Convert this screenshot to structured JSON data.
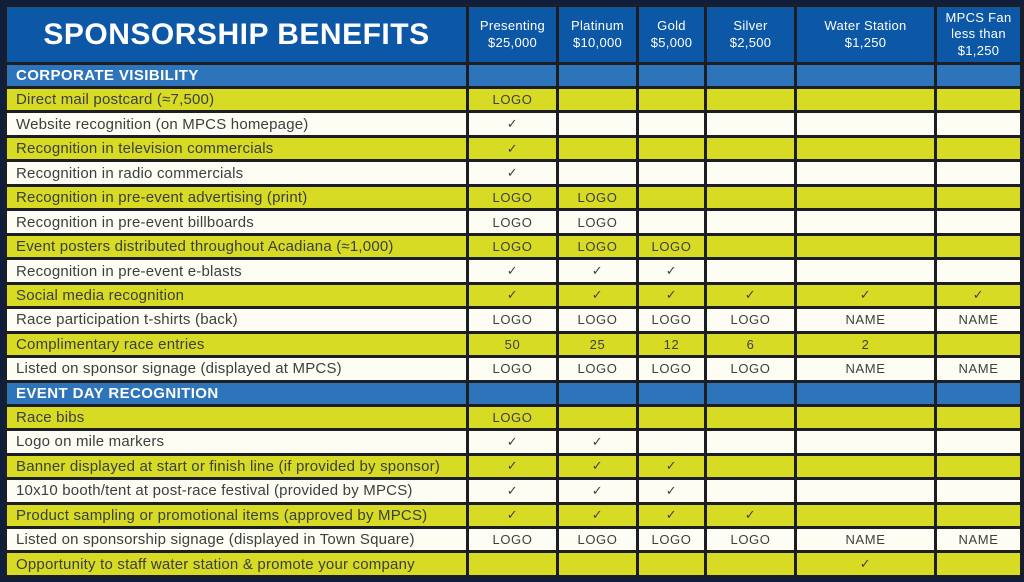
{
  "table": {
    "title": "SPONSORSHIP BENEFITS",
    "columns": [
      {
        "id": "presenting",
        "lines": [
          "Presenting",
          "$25,000"
        ]
      },
      {
        "id": "platinum",
        "lines": [
          "Platinum",
          "$10,000"
        ]
      },
      {
        "id": "gold",
        "lines": [
          "Gold",
          "$5,000"
        ]
      },
      {
        "id": "silver",
        "lines": [
          "Silver",
          "$2,500"
        ]
      },
      {
        "id": "water-station",
        "lines": [
          "Water Station",
          "$1,250"
        ]
      },
      {
        "id": "mpcs-fan",
        "lines": [
          "MPCS Fan",
          "less than",
          "$1,250"
        ]
      }
    ],
    "sections": [
      {
        "label": "CORPORATE VISIBILITY",
        "rows": [
          {
            "benefit": "Direct mail postcard (≈7,500)",
            "cells": [
              "LOGO",
              "",
              "",
              "",
              "",
              ""
            ]
          },
          {
            "benefit": "Website recognition (on MPCS homepage)",
            "cells": [
              "✓",
              "",
              "",
              "",
              "",
              ""
            ]
          },
          {
            "benefit": "Recognition in television commercials",
            "cells": [
              "✓",
              "",
              "",
              "",
              "",
              ""
            ]
          },
          {
            "benefit": "Recognition in radio commercials",
            "cells": [
              "✓",
              "",
              "",
              "",
              "",
              ""
            ]
          },
          {
            "benefit": "Recognition in pre-event advertising (print)",
            "cells": [
              "LOGO",
              "LOGO",
              "",
              "",
              "",
              ""
            ]
          },
          {
            "benefit": "Recognition in pre-event billboards",
            "cells": [
              "LOGO",
              "LOGO",
              "",
              "",
              "",
              ""
            ]
          },
          {
            "benefit": "Event posters distributed throughout Acadiana (≈1,000)",
            "cells": [
              "LOGO",
              "LOGO",
              "LOGO",
              "",
              "",
              ""
            ]
          },
          {
            "benefit": "Recognition in pre-event e-blasts",
            "cells": [
              "✓",
              "✓",
              "✓",
              "",
              "",
              ""
            ]
          },
          {
            "benefit": "Social media recognition",
            "cells": [
              "✓",
              "✓",
              "✓",
              "✓",
              "✓",
              "✓"
            ]
          },
          {
            "benefit": "Race participation t-shirts (back)",
            "cells": [
              "LOGO",
              "LOGO",
              "LOGO",
              "LOGO",
              "NAME",
              "NAME"
            ]
          },
          {
            "benefit": "Complimentary race entries",
            "cells": [
              "50",
              "25",
              "12",
              "6",
              "2",
              ""
            ]
          },
          {
            "benefit": "Listed on sponsor signage (displayed at MPCS)",
            "cells": [
              "LOGO",
              "LOGO",
              "LOGO",
              "LOGO",
              "NAME",
              "NAME"
            ]
          }
        ]
      },
      {
        "label": "EVENT DAY RECOGNITION",
        "rows": [
          {
            "benefit": "Race bibs",
            "cells": [
              "LOGO",
              "",
              "",
              "",
              "",
              ""
            ]
          },
          {
            "benefit": "Logo on mile markers",
            "cells": [
              "✓",
              "✓",
              "",
              "",
              "",
              ""
            ]
          },
          {
            "benefit": "Banner displayed at start or finish line (if provided by sponsor)",
            "cells": [
              "✓",
              "✓",
              "✓",
              "",
              "",
              ""
            ]
          },
          {
            "benefit": "10x10 booth/tent at post-race festival (provided by MPCS)",
            "cells": [
              "✓",
              "✓",
              "✓",
              "",
              "",
              ""
            ]
          },
          {
            "benefit": "Product sampling or promotional items (approved by MPCS)",
            "cells": [
              "✓",
              "✓",
              "✓",
              "✓",
              "",
              ""
            ]
          },
          {
            "benefit": "Listed on sponsorship signage (displayed in Town Square)",
            "cells": [
              "LOGO",
              "LOGO",
              "LOGO",
              "LOGO",
              "NAME",
              "NAME"
            ]
          },
          {
            "benefit": "Opportunity to staff water station & promote your company",
            "cells": [
              "",
              "",
              "",
              "",
              "✓",
              ""
            ]
          }
        ]
      }
    ]
  },
  "colors": {
    "header_blue": "#0d57a7",
    "section_blue": "#2e74ba",
    "row_yellow": "#d7db23",
    "row_white": "#fdfdf4",
    "grid_line": "#1c1e23",
    "outer_border": "#0f1e3d",
    "text_dark": "#3d3e40",
    "header_text": "#ffffff"
  }
}
